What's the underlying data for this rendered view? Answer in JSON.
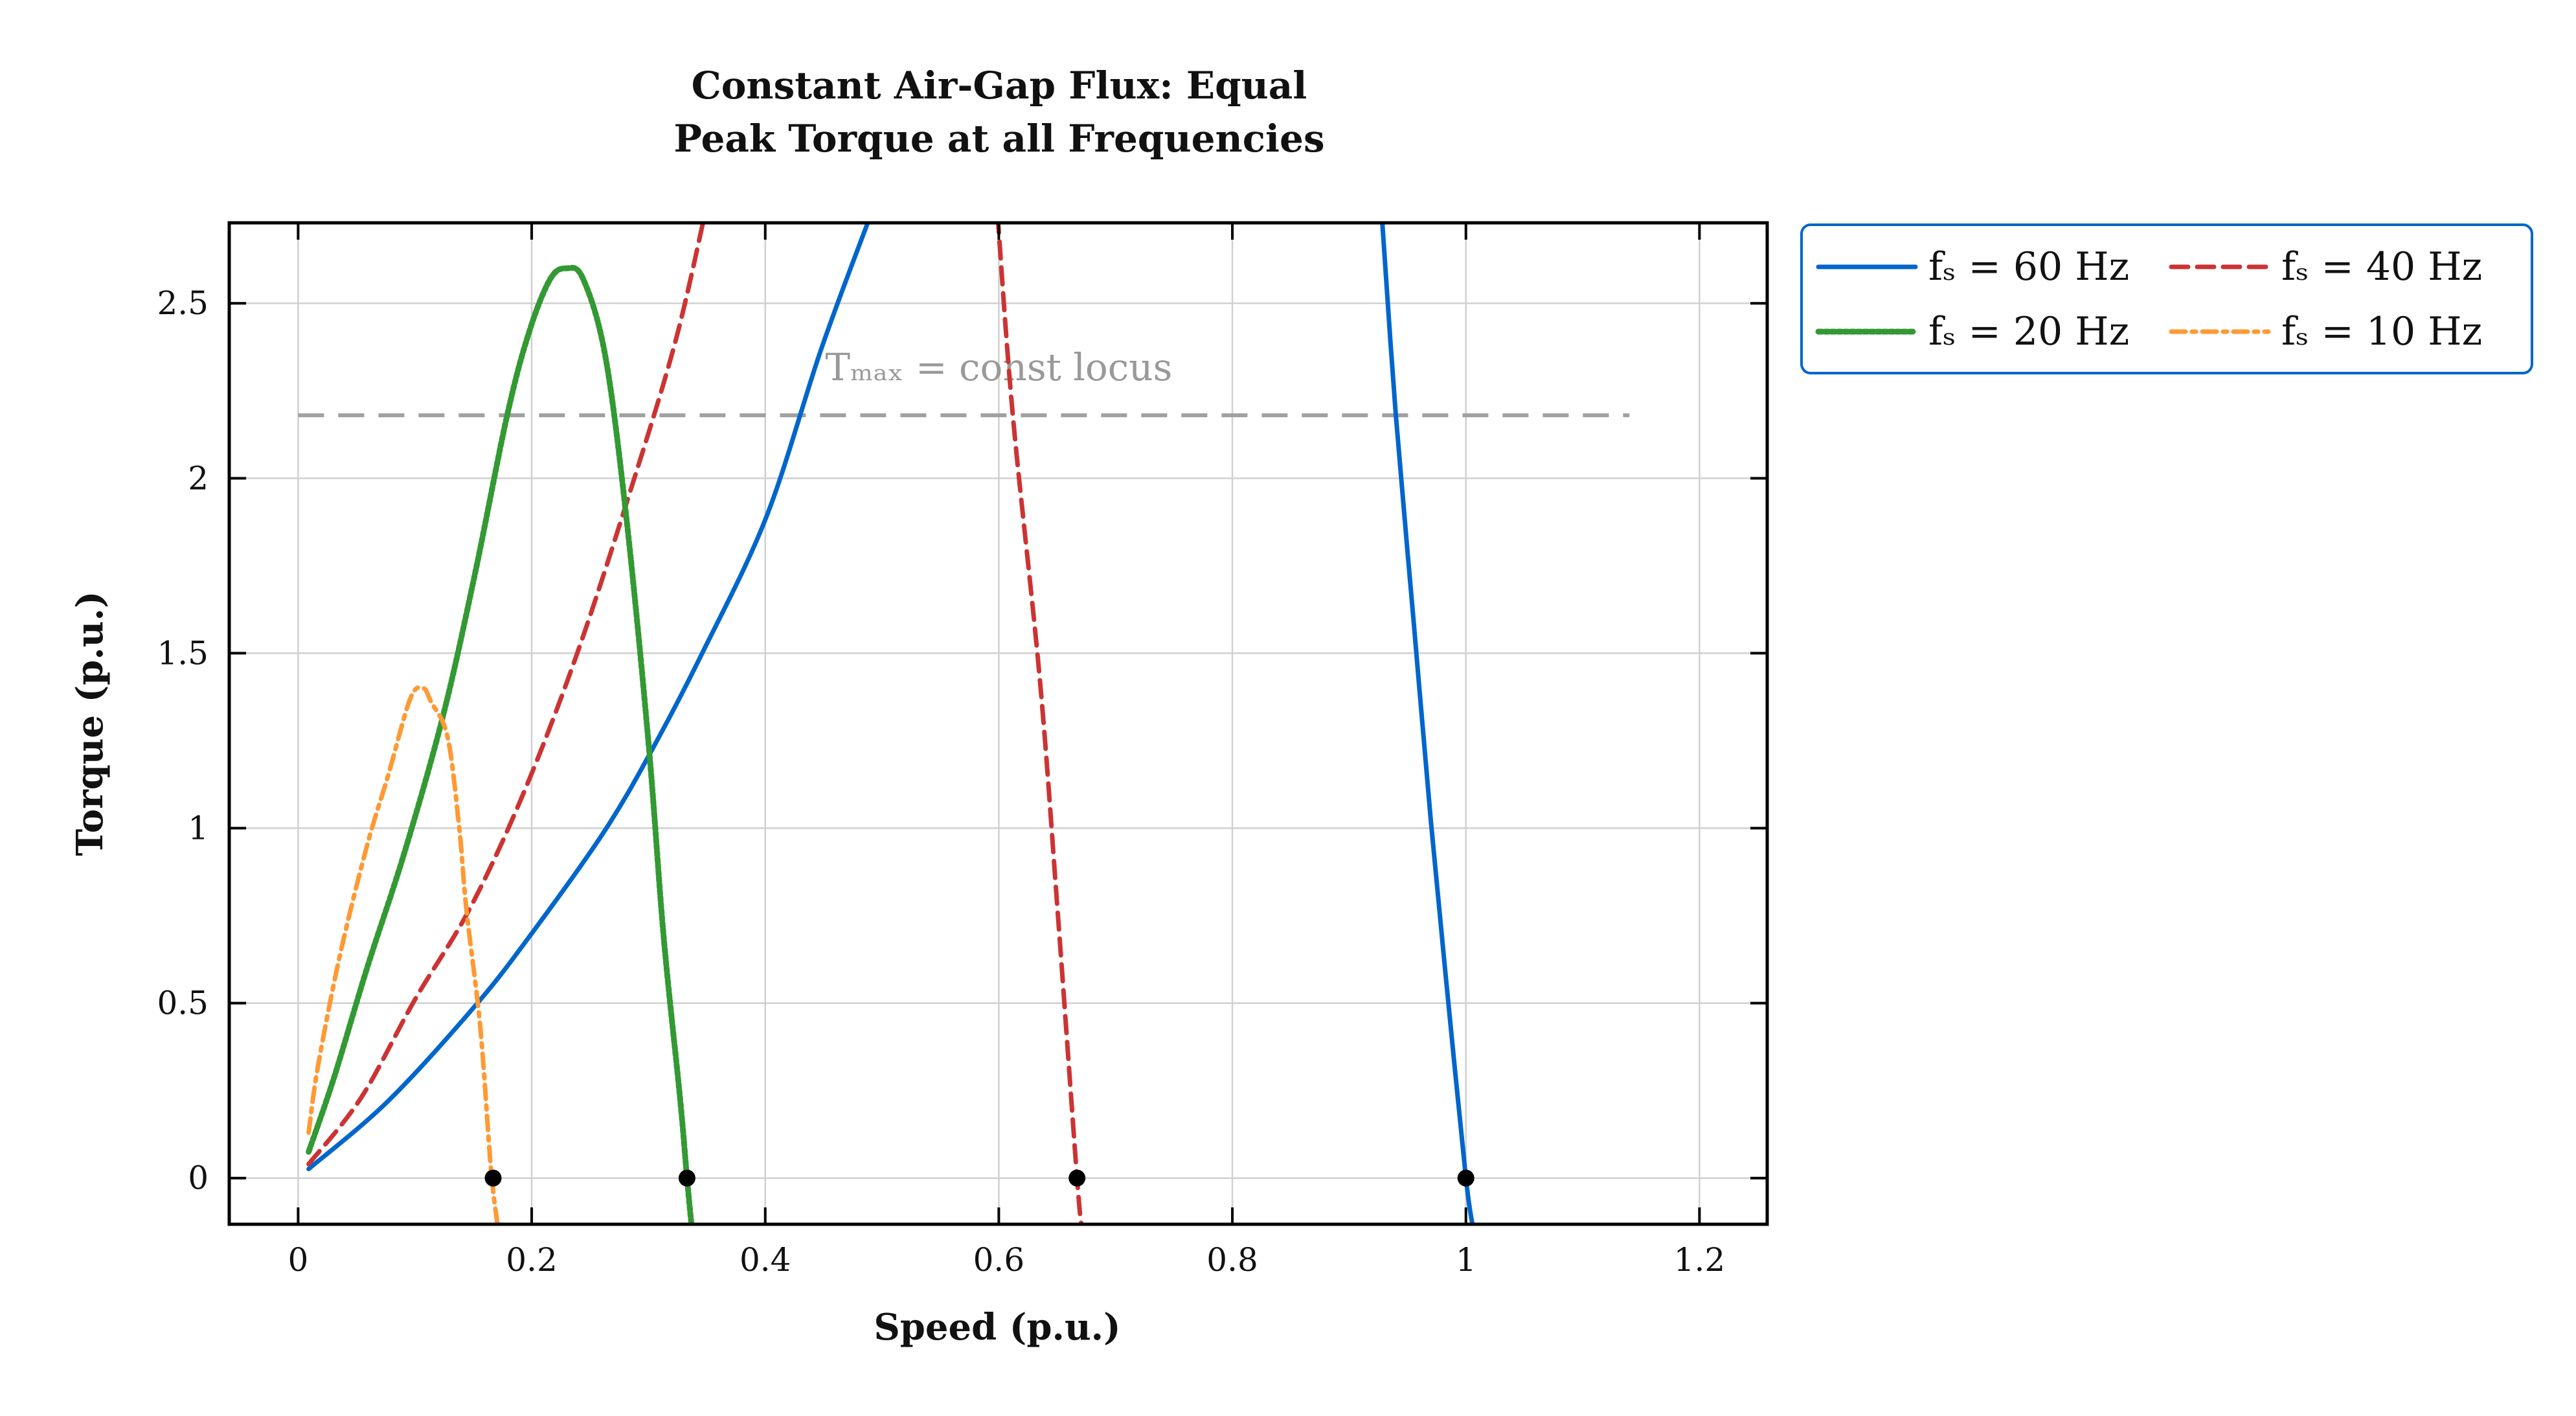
{
  "chart_data": {
    "type": "line",
    "title": [
      "Constant Air-Gap Flux: Equal",
      "Peak Torque at all Frequencies"
    ],
    "xlabel": "Speed (p.u.)",
    "ylabel": "Torque (p.u.)",
    "xlim": [
      -0.059,
      1.258
    ],
    "ylim": [
      -0.132,
      2.73
    ],
    "xticks": [
      0,
      0.2,
      0.4,
      0.6,
      0.8,
      1,
      1.2
    ],
    "xtick_labels": [
      "0",
      "0.2",
      "0.4",
      "0.6",
      "0.8",
      "1",
      "1.2"
    ],
    "yticks": [
      0,
      0.5,
      1,
      1.5,
      2,
      2.5
    ],
    "ytick_labels": [
      "0",
      "0.5",
      "1",
      "1.5",
      "2",
      "2.5"
    ],
    "grid": true,
    "legend_placement": "outside-top-right",
    "legend_columns": 2,
    "legend_border_color": "#0066cc",
    "series": [
      {
        "name": "fₛ = 60 Hz",
        "color": "#0066cc",
        "style": "solid",
        "branches": [
          [
            [
              0.009,
              0.026
            ],
            [
              0.077,
              0.22
            ],
            [
              0.151,
              0.49
            ],
            [
              0.198,
              0.69
            ],
            [
              0.262,
              0.99
            ],
            [
              0.304,
              1.23
            ],
            [
              0.346,
              1.5
            ],
            [
              0.401,
              1.89
            ],
            [
              0.448,
              2.37
            ],
            [
              0.49,
              2.75
            ]
          ],
          [
            [
              0.928,
              2.75
            ],
            [
              0.94,
              2.18
            ],
            [
              0.955,
              1.6
            ],
            [
              0.97,
              1.02
            ],
            [
              0.985,
              0.5
            ],
            [
              1.0,
              0
            ],
            [
              1.006,
              -0.14
            ]
          ]
        ]
      },
      {
        "name": "fₛ = 40 Hz",
        "color": "#cc3333",
        "style": "dashed",
        "branches": [
          [
            [
              0.009,
              0.04
            ],
            [
              0.054,
              0.23
            ],
            [
              0.1,
              0.51
            ],
            [
              0.147,
              0.77
            ],
            [
              0.193,
              1.1
            ],
            [
              0.239,
              1.5
            ],
            [
              0.286,
              1.98
            ],
            [
              0.323,
              2.39
            ],
            [
              0.348,
              2.75
            ]
          ],
          [
            [
              0.599,
              2.75
            ],
            [
              0.612,
              2.18
            ],
            [
              0.635,
              1.43
            ],
            [
              0.65,
              0.78
            ],
            [
              0.667,
              0
            ],
            [
              0.671,
              -0.14
            ]
          ]
        ]
      },
      {
        "name": "fₛ = 20 Hz",
        "color": "#339933",
        "style": "dotted",
        "branches": [
          [
            [
              0.009,
              0.075
            ],
            [
              0.031,
              0.29
            ],
            [
              0.059,
              0.6
            ],
            [
              0.091,
              0.93
            ],
            [
              0.124,
              1.32
            ],
            [
              0.151,
              1.72
            ],
            [
              0.179,
              2.18
            ],
            [
              0.198,
              2.42
            ],
            [
              0.216,
              2.57
            ],
            [
              0.23,
              2.6
            ],
            [
              0.244,
              2.57
            ],
            [
              0.263,
              2.35
            ],
            [
              0.281,
              1.89
            ],
            [
              0.3,
              1.245
            ],
            [
              0.313,
              0.69
            ],
            [
              0.327,
              0.23
            ],
            [
              0.333,
              0
            ],
            [
              0.337,
              -0.14
            ]
          ]
        ]
      },
      {
        "name": "fₛ = 10 Hz",
        "color": "#ff9933",
        "style": "dashdot",
        "branches": [
          [
            [
              0.009,
              0.13
            ],
            [
              0.017,
              0.32
            ],
            [
              0.036,
              0.64
            ],
            [
              0.059,
              0.95
            ],
            [
              0.077,
              1.15
            ],
            [
              0.096,
              1.37
            ],
            [
              0.107,
              1.4
            ],
            [
              0.114,
              1.36
            ],
            [
              0.128,
              1.26
            ],
            [
              0.138,
              1.0
            ],
            [
              0.144,
              0.77
            ],
            [
              0.156,
              0.43
            ],
            [
              0.165,
              0.03
            ],
            [
              0.171,
              -0.14
            ]
          ]
        ]
      }
    ],
    "reference_line": {
      "y": 2.18,
      "x_range": [
        0,
        1.14
      ],
      "color": "#a0a0a0",
      "style": "dashed"
    },
    "annotation": {
      "text": "Tₘₐₓ = const locus",
      "x": 0.6,
      "y": 2.28,
      "color": "#999999"
    },
    "markers": {
      "color": "#000000",
      "points": [
        [
          0.167,
          0
        ],
        [
          0.333,
          0
        ],
        [
          0.667,
          0
        ],
        [
          1,
          0
        ]
      ]
    }
  }
}
